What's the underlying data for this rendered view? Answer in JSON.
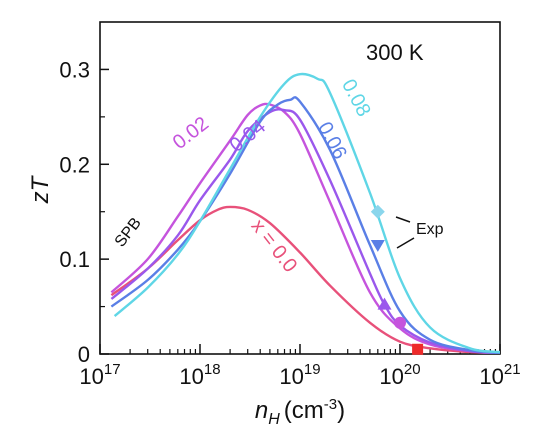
{
  "chart_data": {
    "type": "line",
    "title": "",
    "annotation_temperature": "300 K",
    "annotation_model": "SPB",
    "annotation_exp": "Exp",
    "xlabel_main": "n",
    "xlabel_sub": "H",
    "xlabel_unit": "(cm",
    "xlabel_unit_exp": "-3",
    "xlabel_unit_close": ")",
    "ylabel": "zT",
    "x_scale": "log",
    "xlim": [
      1e+17,
      1e+21
    ],
    "ylim": [
      0,
      0.35
    ],
    "x_ticks": [
      {
        "value": 1e+17,
        "base": "10",
        "exp": "17"
      },
      {
        "value": 1e+18,
        "base": "10",
        "exp": "18"
      },
      {
        "value": 1e+19,
        "base": "10",
        "exp": "19"
      },
      {
        "value": 1e+20,
        "base": "10",
        "exp": "20"
      },
      {
        "value": 1e+21,
        "base": "10",
        "exp": "21"
      }
    ],
    "y_ticks": [
      {
        "value": 0,
        "label": "0"
      },
      {
        "value": 0.1,
        "label": "0.1"
      },
      {
        "value": 0.2,
        "label": "0.2"
      },
      {
        "value": 0.3,
        "label": "0.3"
      }
    ],
    "series": [
      {
        "name": "x = 0.0",
        "color": "#e8517a",
        "x": [
          1.3e+17,
          3e+17,
          6e+17,
          1e+18,
          1.5e+18,
          2e+18,
          3e+18,
          5e+18,
          1e+19,
          2e+19,
          5e+19,
          1e+20,
          2e+20,
          5e+20,
          1e+21
        ],
        "y": [
          0.062,
          0.09,
          0.12,
          0.141,
          0.152,
          0.155,
          0.152,
          0.138,
          0.107,
          0.072,
          0.033,
          0.013,
          0.006,
          0.002,
          0.001
        ],
        "label_x": 3.2e+18,
        "label_y": 0.135,
        "label_rotate": 52
      },
      {
        "name": "0.02",
        "color": "#c554dd",
        "x": [
          1.3e+17,
          3e+17,
          6e+17,
          1e+18,
          2e+18,
          3e+18,
          4e+18,
          5e+18,
          7e+18,
          1e+19,
          2e+19,
          5e+19,
          1e+20,
          2e+20,
          5e+20,
          1e+21
        ],
        "y": [
          0.065,
          0.1,
          0.145,
          0.18,
          0.225,
          0.252,
          0.262,
          0.263,
          0.255,
          0.232,
          0.16,
          0.065,
          0.027,
          0.01,
          0.003,
          0.001
        ],
        "label_x": 6.2e+17,
        "label_y": 0.215,
        "label_rotate": -38
      },
      {
        "name": "0.04",
        "color": "#9a58ec",
        "x": [
          1.3e+17,
          3e+17,
          6e+17,
          1e+18,
          2e+18,
          3e+18,
          5e+18,
          7e+18,
          1e+19,
          2e+19,
          5e+19,
          7e+19,
          1e+20,
          2e+20,
          5e+20,
          1e+21
        ],
        "y": [
          0.058,
          0.09,
          0.125,
          0.162,
          0.205,
          0.235,
          0.255,
          0.257,
          0.247,
          0.183,
          0.085,
          0.052,
          0.03,
          0.012,
          0.003,
          0.001
        ],
        "label_x": 2.3e+18,
        "label_y": 0.212,
        "label_rotate": -38
      },
      {
        "name": "0.06",
        "color": "#5a7fe6",
        "x": [
          1.3e+17,
          3e+17,
          6e+17,
          1e+18,
          2e+18,
          4e+18,
          6e+18,
          8e+18,
          1e+19,
          2e+19,
          5e+19,
          1e+20,
          2e+20,
          5e+20,
          1e+21
        ],
        "y": [
          0.05,
          0.078,
          0.11,
          0.14,
          0.19,
          0.245,
          0.263,
          0.268,
          0.266,
          0.215,
          0.115,
          0.045,
          0.015,
          0.004,
          0.001
        ],
        "label_x": 1.5e+19,
        "label_y": 0.24,
        "label_rotate": 62
      },
      {
        "name": "0.08",
        "color": "#5fd6e6",
        "x": [
          1.4e+17,
          3e+17,
          6e+17,
          1e+18,
          2e+18,
          4e+18,
          7e+18,
          1e+19,
          1.5e+19,
          2e+19,
          5e+19,
          1e+20,
          2e+20,
          5e+20,
          1e+21
        ],
        "y": [
          0.04,
          0.07,
          0.105,
          0.14,
          0.195,
          0.25,
          0.285,
          0.295,
          0.29,
          0.275,
          0.17,
          0.08,
          0.028,
          0.006,
          0.002
        ],
        "label_x": 2.6e+19,
        "label_y": 0.285,
        "label_rotate": 62
      }
    ],
    "experimental_points": [
      {
        "x": 1.5e+20,
        "y": 0.005,
        "marker": "square",
        "color": "#ee2a2a",
        "series": "x = 0.0"
      },
      {
        "x": 1e+20,
        "y": 0.033,
        "marker": "circle",
        "color": "#c554dd",
        "series": "0.02"
      },
      {
        "x": 7e+19,
        "y": 0.052,
        "marker": "triangle-up",
        "color": "#9a58ec",
        "series": "0.04"
      },
      {
        "x": 6e+19,
        "y": 0.115,
        "marker": "triangle-down",
        "color": "#5a7fe6",
        "series": "0.06"
      },
      {
        "x": 6e+19,
        "y": 0.15,
        "marker": "diamond",
        "color": "#8ad6ec",
        "series": "0.08"
      }
    ],
    "grid": false,
    "legend": "none"
  }
}
